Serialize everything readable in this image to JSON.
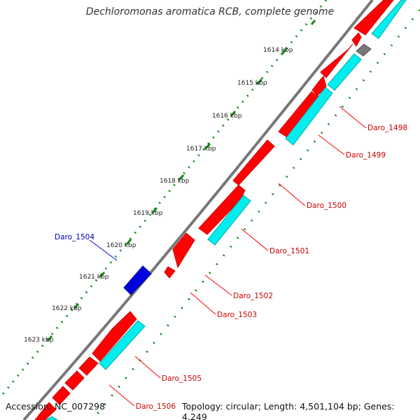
{
  "title": "Dechloromonas aromatica RCB, complete genome",
  "accession": "Accession: NC_007298",
  "summary": "Topology: circular; Length: 4,501,104 bp; Genes: 4,249",
  "colors": {
    "backbone": "#888888",
    "tick": "#1a8a1a",
    "forward_gene": "#ff0000",
    "reverse_gene": "#0000dd",
    "forward_cds": "#00eeee",
    "rna": "#777777",
    "label_red": "#cc0000",
    "label_blue": "#0000aa",
    "tick_label": "#222222"
  },
  "ruler_labels": [
    "1614 kbp",
    "1615 kbp",
    "1616 kbp",
    "1617 kbp",
    "1618 kbp",
    "1619 kbp",
    "1620 kbp",
    "1621 kbp",
    "1622 kbp",
    "1623 kbp"
  ],
  "gene_labels": [
    "Daro_1498",
    "Daro_1499",
    "Daro_1500",
    "Daro_1501",
    "Daro_1502",
    "Daro_1503",
    "Daro_1504",
    "Daro_1505",
    "Daro_1506"
  ]
}
